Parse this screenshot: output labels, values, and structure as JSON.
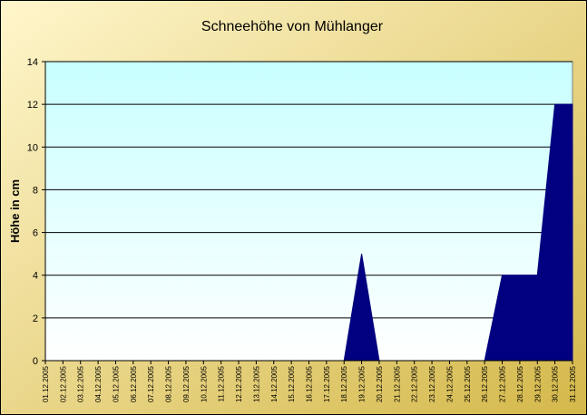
{
  "colors": {
    "area": "#000080",
    "plot_bg_top": "#c8ffff",
    "plot_bg_bottom": "#ffffff",
    "frame_bg_light": "#fff6cc",
    "frame_bg_dark": "#d4b84a"
  },
  "chart_data": {
    "type": "area",
    "title": "Schneehöhe von Mühlanger",
    "xlabel": "",
    "ylabel": "Höhe in cm",
    "ylim": [
      0,
      14
    ],
    "yticks": [
      "0",
      "2",
      "4",
      "6",
      "8",
      "10",
      "12",
      "14"
    ],
    "grid": true,
    "legend": "none",
    "categories": [
      "01.12.2005",
      "02.12.2005",
      "03.12.2005",
      "04.12.2005",
      "05.12.2005",
      "06.12.2005",
      "07.12.2005",
      "08.12.2005",
      "09.12.2005",
      "10.12.2005",
      "11.12.2005",
      "12.12.2005",
      "13.12.2005",
      "14.12.2005",
      "15.12.2005",
      "16.12.2005",
      "17.12.2005",
      "18.12.2005",
      "19.12.2005",
      "20.12.2005",
      "21.12.2005",
      "22.12.2005",
      "23.12.2005",
      "24.12.2005",
      "25.12.2005",
      "26.12.2005",
      "27.12.2005",
      "28.12.2005",
      "29.12.2005",
      "30.12.2005",
      "31.12.2005"
    ],
    "values": [
      0,
      0,
      0,
      0,
      0,
      0,
      0,
      0,
      0,
      0,
      0,
      0,
      0,
      0,
      0,
      0,
      0,
      0,
      5,
      0,
      0,
      0,
      0,
      0,
      0,
      0,
      4,
      4,
      4,
      12,
      12
    ]
  }
}
